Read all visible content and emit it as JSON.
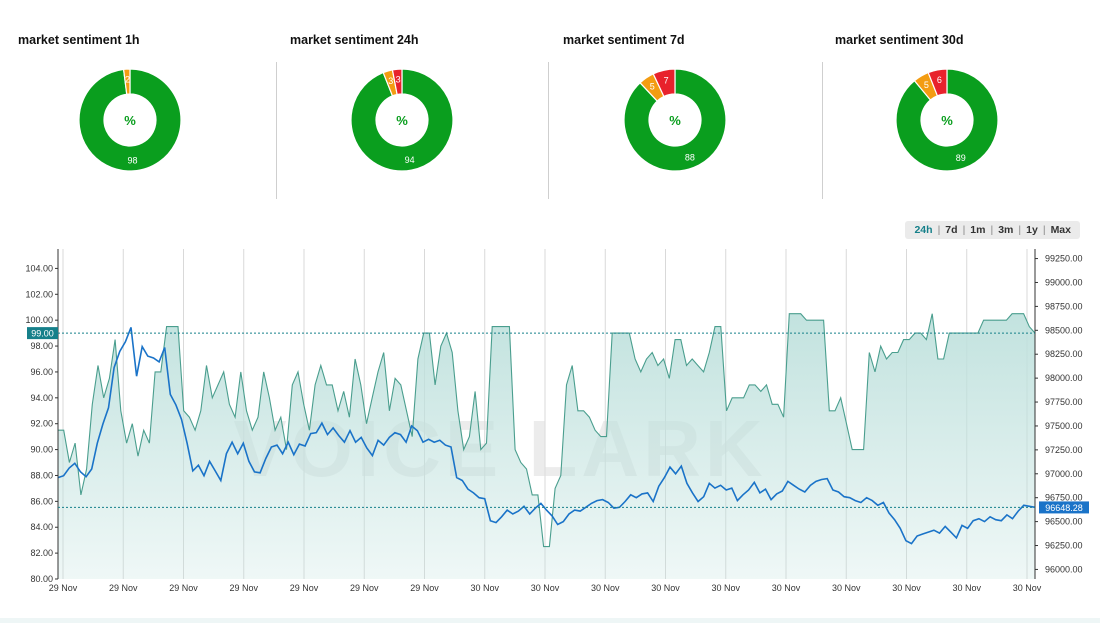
{
  "donuts": [
    {
      "title": "market sentiment 1h",
      "center": "%",
      "slices": [
        {
          "label": "98",
          "value": 98,
          "color": "#0a9e1e"
        },
        {
          "label": "2",
          "value": 2,
          "color": "#f39c12"
        }
      ]
    },
    {
      "title": "market sentiment 24h",
      "center": "%",
      "slices": [
        {
          "label": "94",
          "value": 94,
          "color": "#0a9e1e"
        },
        {
          "label": "3",
          "value": 3,
          "color": "#f39c12"
        },
        {
          "label": "3",
          "value": 3,
          "color": "#e8222c"
        }
      ]
    },
    {
      "title": "market sentiment 7d",
      "center": "%",
      "slices": [
        {
          "label": "88",
          "value": 88,
          "color": "#0a9e1e"
        },
        {
          "label": "5",
          "value": 5,
          "color": "#f39c12"
        },
        {
          "label": "7",
          "value": 7,
          "color": "#e8222c"
        }
      ]
    },
    {
      "title": "market sentiment 30d",
      "center": "%",
      "slices": [
        {
          "label": "89",
          "value": 89,
          "color": "#0a9e1e"
        },
        {
          "label": "5",
          "value": 5,
          "color": "#f39c12"
        },
        {
          "label": "6",
          "value": 6,
          "color": "#e8222c"
        }
      ]
    }
  ],
  "range_buttons": [
    "24h",
    "7d",
    "1m",
    "3m",
    "1y",
    "Max"
  ],
  "range_active": "24h",
  "watermark": "VOICE LARK",
  "chart_data": {
    "type": "area",
    "x_ticks": [
      "29 Nov",
      "29 Nov",
      "29 Nov",
      "29 Nov",
      "29 Nov",
      "29 Nov",
      "29 Nov",
      "30 Nov",
      "30 Nov",
      "30 Nov",
      "30 Nov",
      "30 Nov",
      "30 Nov",
      "30 Nov",
      "30 Nov",
      "30 Nov",
      "30 Nov"
    ],
    "y_left": {
      "ticks": [
        "80.00",
        "82.00",
        "84.00",
        "86.00",
        "88.00",
        "90.00",
        "92.00",
        "94.00",
        "96.00",
        "98.00",
        "100.00",
        "102.00",
        "104.00"
      ],
      "range": [
        80,
        105.5
      ],
      "current": "99.00"
    },
    "y_right": {
      "ticks": [
        "96000.00",
        "96250.00",
        "96500.00",
        "96750.00",
        "97000.00",
        "97250.00",
        "97500.00",
        "97750.00",
        "98000.00",
        "98250.00",
        "98500.00",
        "98750.00",
        "99000.00",
        "99250.00"
      ],
      "range": [
        95900,
        99350
      ],
      "current": "96648.28"
    },
    "colors": {
      "sentiment_line": "#4a9e8e",
      "sentiment_fill": "#bfe1dd",
      "price_line": "#1a73c8",
      "left_marker": "#16808a",
      "right_marker": "#1a73c8"
    },
    "series": [
      {
        "axis": "left",
        "type": "area",
        "values": [
          91.5,
          91.5,
          89,
          90.5,
          86.5,
          88.5,
          93.5,
          96.5,
          94,
          95.5,
          98.5,
          93,
          90.5,
          92,
          89.5,
          91.5,
          90.5,
          96,
          96,
          99.5,
          99.5,
          99.5,
          93,
          92.5,
          91.5,
          93,
          96.5,
          94,
          95,
          96,
          93.5,
          92.5,
          96,
          93,
          91.5,
          92.5,
          96,
          94,
          91.5,
          92.5,
          90,
          95,
          96,
          93.5,
          91.5,
          95,
          96.5,
          95,
          95,
          93,
          94.5,
          92.5,
          97,
          95,
          92,
          94,
          96,
          97.5,
          93,
          95.5,
          95,
          93,
          91,
          97,
          99,
          99,
          95,
          98,
          99,
          97.5,
          93,
          90,
          91,
          94.5,
          90,
          90.5,
          99.5,
          99.5,
          99.5,
          99.5,
          90,
          89,
          88.5,
          86.5,
          86.5,
          82.5,
          82.5,
          87,
          88,
          95,
          96.5,
          93,
          93,
          92.5,
          91.5,
          91,
          91,
          99,
          99,
          99,
          99,
          97,
          96,
          97,
          97.5,
          96.5,
          97,
          95.5,
          98.5,
          98.5,
          96.5,
          97,
          96.5,
          96,
          97.5,
          99.5,
          99.5,
          93,
          94,
          94,
          94,
          95,
          95,
          94.5,
          95,
          93.5,
          93.5,
          92.5,
          100.5,
          100.5,
          100.5,
          100,
          100,
          100,
          100,
          93,
          93,
          94,
          92,
          90,
          90,
          90,
          97.5,
          96,
          98,
          97,
          97.5,
          97.5,
          98.5,
          98.5,
          99,
          99,
          98.5,
          100.5,
          97,
          97,
          99,
          99,
          99,
          99,
          99,
          99,
          100,
          100,
          100,
          100,
          100,
          100.5,
          100.5,
          100.5,
          99.5,
          99
        ]
      },
      {
        "axis": "right",
        "type": "line",
        "values": [
          96960,
          96980,
          97060,
          97110,
          97020,
          96970,
          97050,
          97320,
          97520,
          97690,
          98110,
          98280,
          98380,
          98530,
          98020,
          98330,
          98230,
          98210,
          98170,
          98320,
          97830,
          97720,
          97570,
          97320,
          97030,
          97090,
          96980,
          97130,
          97030,
          96930,
          97210,
          97330,
          97210,
          97320,
          97130,
          97020,
          97010,
          97160,
          97280,
          97300,
          97210,
          97330,
          97200,
          97310,
          97290,
          97420,
          97430,
          97530,
          97410,
          97480,
          97400,
          97330,
          97450,
          97330,
          97380,
          97270,
          97190,
          97350,
          97300,
          97380,
          97430,
          97410,
          97330,
          97500,
          97450,
          97330,
          97360,
          97330,
          97350,
          97300,
          97280,
          96960,
          96930,
          96840,
          96800,
          96750,
          96740,
          96510,
          96490,
          96550,
          96620,
          96580,
          96610,
          96660,
          96580,
          96640,
          96690,
          96620,
          96560,
          96470,
          96500,
          96580,
          96620,
          96610,
          96650,
          96690,
          96720,
          96730,
          96700,
          96640,
          96650,
          96710,
          96780,
          96750,
          96790,
          96800,
          96710,
          96870,
          96960,
          97070,
          97000,
          97080,
          96900,
          96800,
          96710,
          96760,
          96900,
          96850,
          96880,
          96830,
          96850,
          96720,
          96780,
          96830,
          96910,
          96800,
          96840,
          96730,
          96790,
          96820,
          96920,
          96880,
          96840,
          96810,
          96880,
          96920,
          96940,
          96950,
          96830,
          96810,
          96760,
          96750,
          96720,
          96700,
          96750,
          96720,
          96670,
          96700,
          96590,
          96520,
          96430,
          96300,
          96270,
          96350,
          96370,
          96390,
          96410,
          96380,
          96450,
          96390,
          96330,
          96460,
          96430,
          96510,
          96530,
          96500,
          96550,
          96520,
          96510,
          96570,
          96530,
          96610,
          96670,
          96660,
          96650
        ]
      }
    ]
  }
}
